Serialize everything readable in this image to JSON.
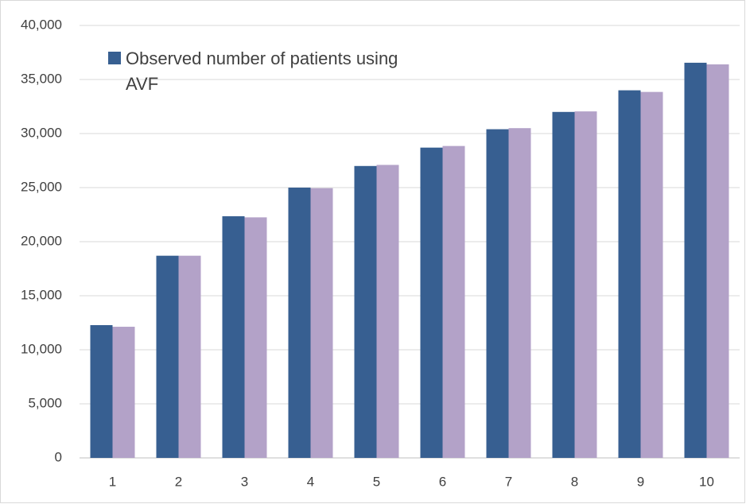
{
  "chart_data": {
    "type": "bar",
    "categories": [
      1,
      2,
      3,
      4,
      5,
      6,
      7,
      8,
      9,
      10
    ],
    "series": [
      {
        "name": "Observed number of patients using AVF",
        "color": "#375f91",
        "values": [
          12280,
          18700,
          22350,
          25000,
          27000,
          28700,
          30400,
          32000,
          34000,
          36550
        ]
      },
      {
        "color": "#b3a2c8",
        "values": [
          12130,
          18700,
          22250,
          24950,
          27100,
          28850,
          30500,
          32050,
          33850,
          36400
        ]
      }
    ],
    "ylim": [
      0,
      40000
    ],
    "yticks": [
      0,
      {
        "value": 5000,
        "label": "5,000"
      },
      {
        "value": 10000,
        "label": "10,000"
      },
      {
        "value": 15000,
        "label": "15,000"
      },
      {
        "value": 20000,
        "label": "20,000"
      },
      {
        "value": 25000,
        "label": "25,000"
      },
      {
        "value": 30000,
        "label": "30,000"
      },
      {
        "value": 35000,
        "label": "35,000"
      },
      {
        "value": 40000,
        "label": "40,000"
      }
    ],
    "grid": true
  }
}
